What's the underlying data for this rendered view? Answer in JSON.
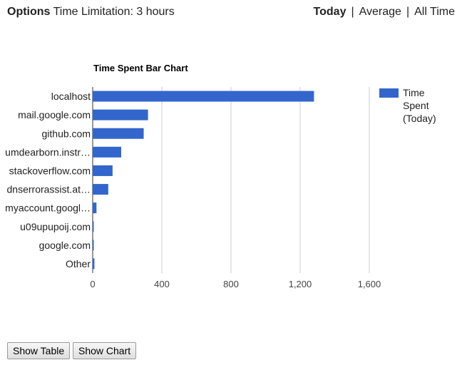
{
  "header": {
    "options_label": "Options",
    "time_limitation": "Time Limitation: 3 hours",
    "views": [
      {
        "label": "Today",
        "active": true
      },
      {
        "label": "Average",
        "active": false
      },
      {
        "label": "All Time",
        "active": false
      }
    ],
    "separator": "|"
  },
  "buttons": {
    "show_table": "Show Table",
    "show_chart": "Show Chart"
  },
  "colors": {
    "bar": "#3366cc",
    "grid": "#cccccc",
    "axis_text": "#444444",
    "label_text": "#222222"
  },
  "chart_data": {
    "type": "bar",
    "orientation": "horizontal",
    "title": "Time Spent Bar Chart",
    "categories": [
      "localhost",
      "mail.google.com",
      "github.com",
      "umdearborn.instr…",
      "stackoverflow.com",
      "dnserrorassist.at…",
      "myaccount.googl…",
      "u09upupoij.com",
      "google.com",
      "Other"
    ],
    "series": [
      {
        "name": "Time Spent (Today)",
        "values": [
          1280,
          320,
          295,
          165,
          115,
          90,
          22,
          5,
          4,
          10
        ]
      }
    ],
    "xlim": [
      0,
      1600
    ],
    "xticks": [
      0,
      400,
      800,
      1200,
      1600
    ],
    "xtick_labels": [
      "0",
      "400",
      "800",
      "1,200",
      "1,600"
    ],
    "grid": true,
    "legend": "right"
  }
}
